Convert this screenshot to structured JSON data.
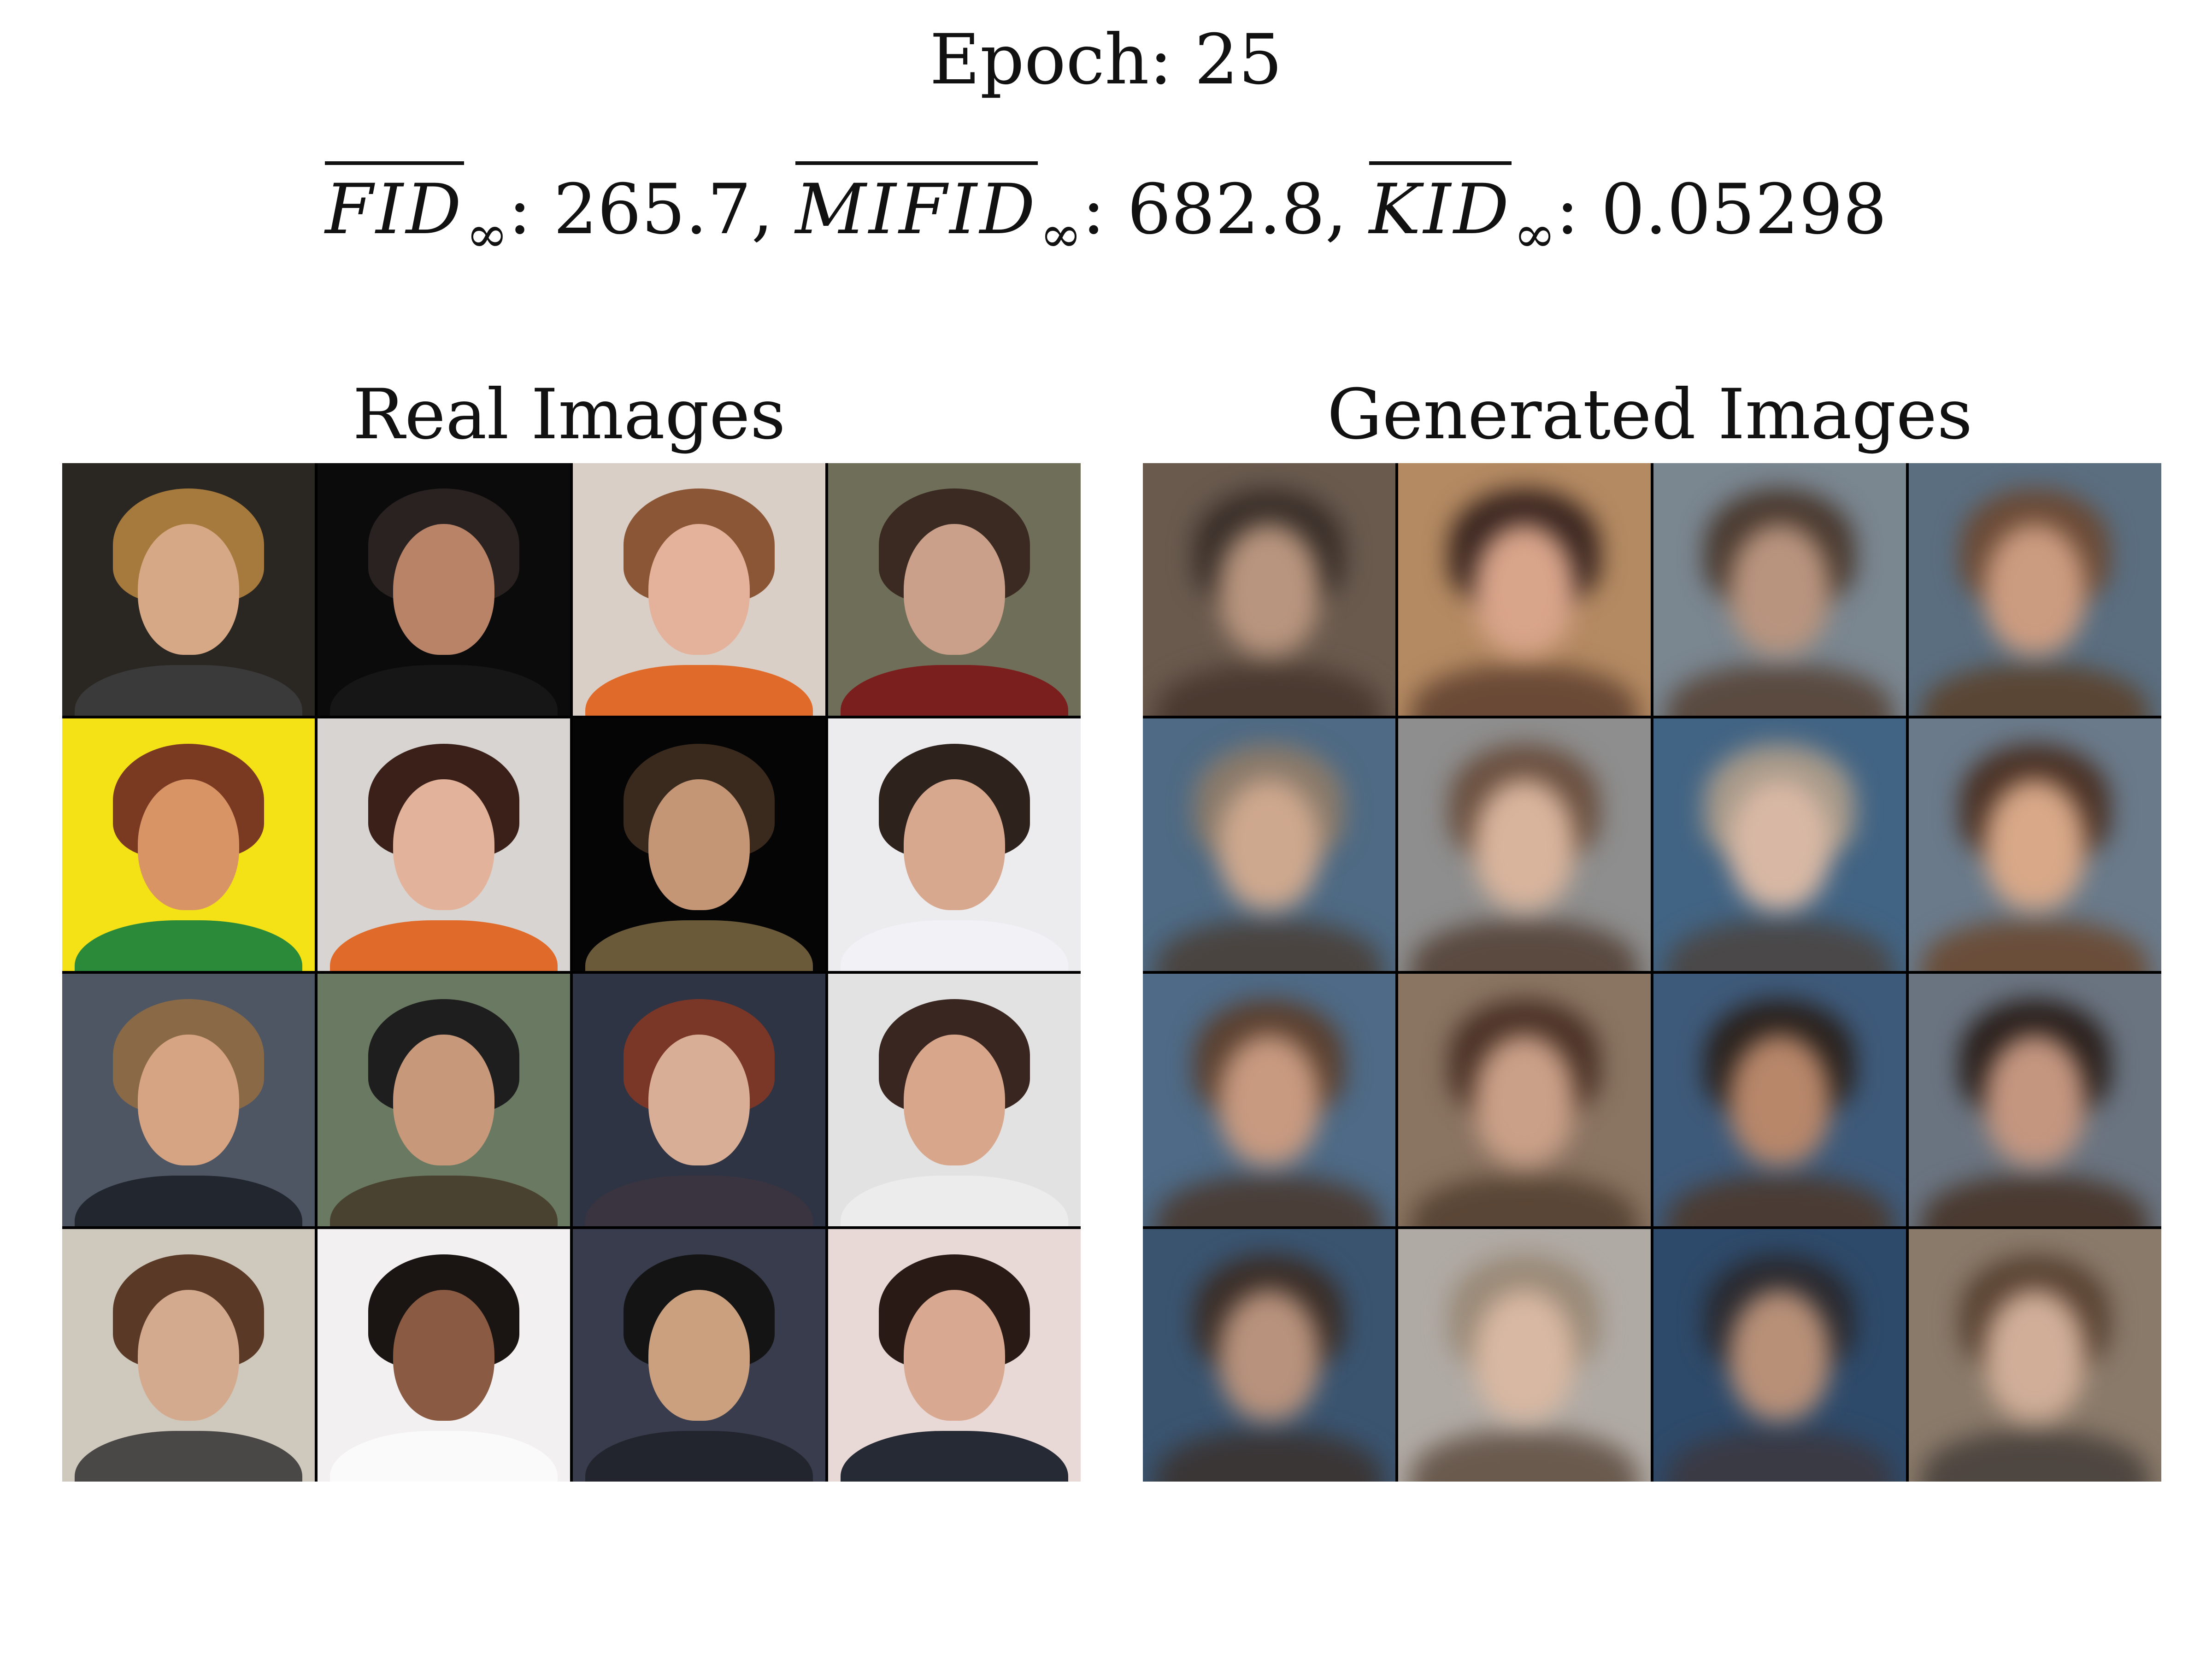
{
  "epoch": {
    "label": "Epoch: 25"
  },
  "metrics": [
    {
      "name": "FID",
      "subscript": "∞",
      "value": "265.7",
      "separator": ","
    },
    {
      "name": "MIFID",
      "subscript": "∞",
      "value": "682.8",
      "separator": ","
    },
    {
      "name": "KID",
      "subscript": "∞",
      "value": "0.05298",
      "separator": ""
    }
  ],
  "panels": {
    "real": {
      "title": "Real Images",
      "tiles": [
        {
          "bg": "#2a2622",
          "face": "#d7a886",
          "hair": "#a67a3c",
          "body": "#3a3a3a"
        },
        {
          "bg": "#0b0b0b",
          "face": "#b88366",
          "hair": "#2a2220",
          "body": "#161616"
        },
        {
          "bg": "#d9cfc6",
          "face": "#e4b29a",
          "hair": "#8a5636",
          "body": "#e06a2a"
        },
        {
          "bg": "#6f6e58",
          "face": "#caa08a",
          "hair": "#3a2a22",
          "body": "#7a1e1e"
        },
        {
          "bg": "#f4e216",
          "face": "#d99466",
          "hair": "#7a3a22",
          "body": "#2a8a3a"
        },
        {
          "bg": "#d7d4d2",
          "face": "#e2b29a",
          "hair": "#3a2018",
          "body": "#e06a2a"
        },
        {
          "bg": "#050505",
          "face": "#c49676",
          "hair": "#3a2a1e",
          "body": "#6a5a3a"
        },
        {
          "bg": "#ecebee",
          "face": "#d8a88e",
          "hair": "#2e221c",
          "body": "#f2f2f6"
        },
        {
          "bg": "#4e5664",
          "face": "#d6a482",
          "hair": "#8a6a46",
          "body": "#22262e"
        },
        {
          "bg": "#6a7a62",
          "face": "#c8987a",
          "hair": "#1e1e1e",
          "body": "#4a4230"
        },
        {
          "bg": "#2e3444",
          "face": "#d8ae96",
          "hair": "#7a3626",
          "body": "#3a3440"
        },
        {
          "bg": "#e2e2e2",
          "face": "#d8a68a",
          "hair": "#3a2620",
          "body": "#ececec"
        },
        {
          "bg": "#cfc8bc",
          "face": "#d4aa8e",
          "hair": "#5a3a26",
          "body": "#4a4846"
        },
        {
          "bg": "#f2f0f0",
          "face": "#8a5a42",
          "hair": "#1a1412",
          "body": "#fafafa"
        },
        {
          "bg": "#383c4c",
          "face": "#caa07e",
          "hair": "#141414",
          "body": "#22242e"
        },
        {
          "bg": "#e8d8d6",
          "face": "#d8a890",
          "hair": "#2a1a16",
          "body": "#262a34"
        }
      ]
    },
    "generated": {
      "title": "Generated Images",
      "tiles": [
        {
          "bg": "#6a5a4e",
          "face": "#b8957e",
          "hair": "#3a302a",
          "body": "#4a3a30"
        },
        {
          "bg": "#b48a62",
          "face": "#d8a48a",
          "hair": "#3a2620",
          "body": "#6a4a36"
        },
        {
          "bg": "#7a8690",
          "face": "#b8947e",
          "hair": "#4a3a30",
          "body": "#5a4a40"
        },
        {
          "bg": "#5a6e80",
          "face": "#cc9c80",
          "hair": "#6a4a36",
          "body": "#5a4634"
        },
        {
          "bg": "#4e6a84",
          "face": "#cea88e",
          "hair": "#8a7a6a",
          "body": "#4a4440"
        },
        {
          "bg": "#8e8e8e",
          "face": "#d8b49c",
          "hair": "#6a5040",
          "body": "#5a4a40"
        },
        {
          "bg": "#426484",
          "face": "#d8b8a4",
          "hair": "#a89a8a",
          "body": "#4a4848"
        },
        {
          "bg": "#6a7a8a",
          "face": "#d8a888",
          "hair": "#4a3226",
          "body": "#6a4e3a"
        },
        {
          "bg": "#4e6a86",
          "face": "#c89a80",
          "hair": "#5a4030",
          "body": "#4a3e38"
        },
        {
          "bg": "#8a7462",
          "face": "#caa088",
          "hair": "#4a3226",
          "body": "#5a4636"
        },
        {
          "bg": "#3e5a7a",
          "face": "#b8876a",
          "hair": "#2a221e",
          "body": "#4a3c34"
        },
        {
          "bg": "#6a7480",
          "face": "#c49680",
          "hair": "#2a201c",
          "body": "#4a3a30"
        },
        {
          "bg": "#3a5470",
          "face": "#b8927c",
          "hair": "#3a2e28",
          "body": "#3a3636"
        },
        {
          "bg": "#b0aaa4",
          "face": "#d8b8a2",
          "hair": "#9a8a78",
          "body": "#6a5a4e"
        },
        {
          "bg": "#2e4a6a",
          "face": "#b89078",
          "hair": "#2a2a30",
          "body": "#3a3a44"
        },
        {
          "bg": "#8a7a6a",
          "face": "#d0ae98",
          "hair": "#5a4434",
          "body": "#4e4640"
        }
      ]
    }
  }
}
